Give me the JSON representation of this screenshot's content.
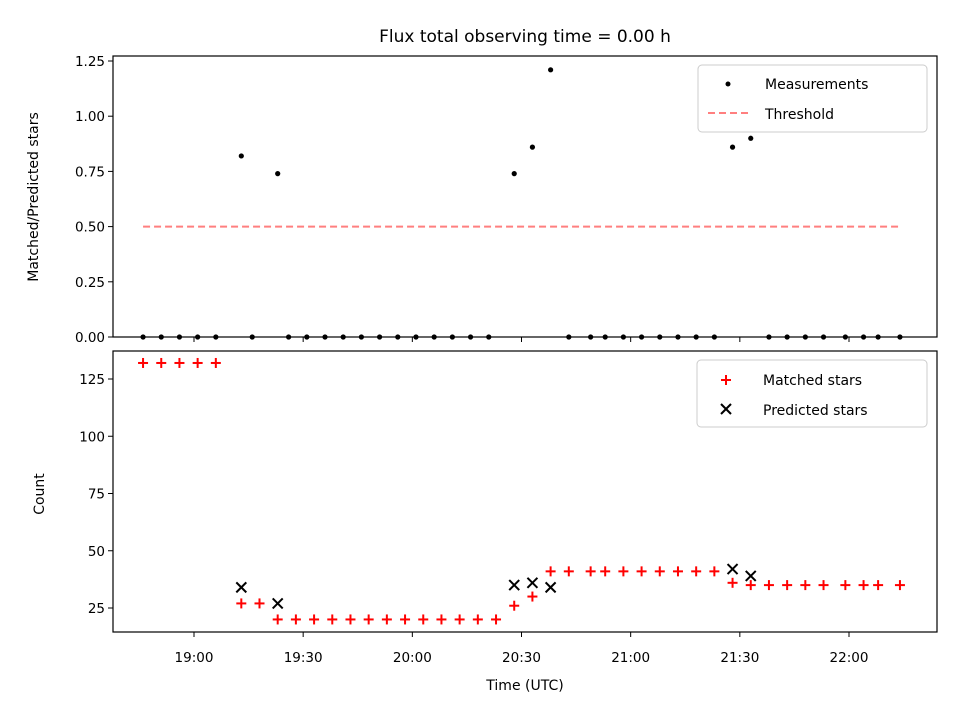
{
  "chart_data": [
    {
      "type": "scatter",
      "title": "Flux total observing time = 0.00 h",
      "ylabel": "Matched/Predicted stars",
      "xlabel": "",
      "ylim": [
        0,
        1.27
      ],
      "yticks": [
        "0.00",
        "0.25",
        "0.50",
        "0.75",
        "1.00",
        "1.25"
      ],
      "legend_position": "top-right",
      "threshold": {
        "name": "Threshold",
        "value": 0.5,
        "x_start": "18:46",
        "x_end": "22:14",
        "color": "#ff7f7f"
      },
      "series": [
        {
          "name": "Measurements",
          "color": "#000000",
          "points": [
            [
              "18:46",
              0
            ],
            [
              "18:51",
              0
            ],
            [
              "18:56",
              0
            ],
            [
              "19:01",
              0
            ],
            [
              "19:06",
              0
            ],
            [
              "19:13",
              0.82
            ],
            [
              "19:16",
              0
            ],
            [
              "19:23",
              0.74
            ],
            [
              "19:26",
              0
            ],
            [
              "19:31",
              0
            ],
            [
              "19:36",
              0
            ],
            [
              "19:41",
              0
            ],
            [
              "19:46",
              0
            ],
            [
              "19:51",
              0
            ],
            [
              "19:56",
              0
            ],
            [
              "20:01",
              0
            ],
            [
              "20:06",
              0
            ],
            [
              "20:11",
              0
            ],
            [
              "20:16",
              0
            ],
            [
              "20:21",
              0
            ],
            [
              "20:28",
              0.74
            ],
            [
              "20:33",
              0.86
            ],
            [
              "20:38",
              1.21
            ],
            [
              "20:43",
              0
            ],
            [
              "20:49",
              0
            ],
            [
              "20:53",
              0
            ],
            [
              "20:58",
              0
            ],
            [
              "21:03",
              0
            ],
            [
              "21:08",
              0
            ],
            [
              "21:13",
              0
            ],
            [
              "21:18",
              0
            ],
            [
              "21:23",
              0
            ],
            [
              "21:28",
              0.86
            ],
            [
              "21:33",
              0.9
            ],
            [
              "21:38",
              0
            ],
            [
              "21:43",
              0
            ],
            [
              "21:48",
              0
            ],
            [
              "21:53",
              0
            ],
            [
              "21:59",
              0
            ],
            [
              "22:04",
              0
            ],
            [
              "22:08",
              0
            ],
            [
              "22:14",
              0
            ]
          ]
        }
      ]
    },
    {
      "type": "scatter",
      "title": "",
      "ylabel": "Count",
      "xlabel": "Time (UTC)",
      "ylim": [
        15,
        140
      ],
      "yticks": [
        "25",
        "50",
        "75",
        "100",
        "125"
      ],
      "xticks": [
        "19:00",
        "19:30",
        "20:00",
        "20:30",
        "21:00",
        "21:30",
        "22:00"
      ],
      "legend_position": "top-right",
      "series": [
        {
          "name": "Matched stars",
          "marker": "+",
          "color": "#ff0000",
          "points": [
            [
              "18:46",
              132
            ],
            [
              "18:51",
              132
            ],
            [
              "18:56",
              132
            ],
            [
              "19:01",
              132
            ],
            [
              "19:06",
              132
            ],
            [
              "19:13",
              27
            ],
            [
              "19:18",
              27
            ],
            [
              "19:23",
              20
            ],
            [
              "19:28",
              20
            ],
            [
              "19:33",
              20
            ],
            [
              "19:38",
              20
            ],
            [
              "19:43",
              20
            ],
            [
              "19:48",
              20
            ],
            [
              "19:53",
              20
            ],
            [
              "19:58",
              20
            ],
            [
              "20:03",
              20
            ],
            [
              "20:08",
              20
            ],
            [
              "20:13",
              20
            ],
            [
              "20:18",
              20
            ],
            [
              "20:23",
              20
            ],
            [
              "20:28",
              26
            ],
            [
              "20:33",
              30
            ],
            [
              "20:38",
              41
            ],
            [
              "20:43",
              41
            ],
            [
              "20:49",
              41
            ],
            [
              "20:53",
              41
            ],
            [
              "20:58",
              41
            ],
            [
              "21:03",
              41
            ],
            [
              "21:08",
              41
            ],
            [
              "21:13",
              41
            ],
            [
              "21:18",
              41
            ],
            [
              "21:23",
              41
            ],
            [
              "21:28",
              36
            ],
            [
              "21:33",
              35
            ],
            [
              "21:38",
              35
            ],
            [
              "21:43",
              35
            ],
            [
              "21:48",
              35
            ],
            [
              "21:53",
              35
            ],
            [
              "21:59",
              35
            ],
            [
              "22:04",
              35
            ],
            [
              "22:08",
              35
            ],
            [
              "22:14",
              35
            ]
          ]
        },
        {
          "name": "Predicted stars",
          "marker": "x",
          "color": "#000000",
          "points": [
            [
              "19:13",
              34
            ],
            [
              "19:23",
              27
            ],
            [
              "20:28",
              35
            ],
            [
              "20:33",
              36
            ],
            [
              "20:38",
              34
            ],
            [
              "21:28",
              42
            ],
            [
              "21:33",
              39
            ]
          ]
        }
      ]
    }
  ]
}
